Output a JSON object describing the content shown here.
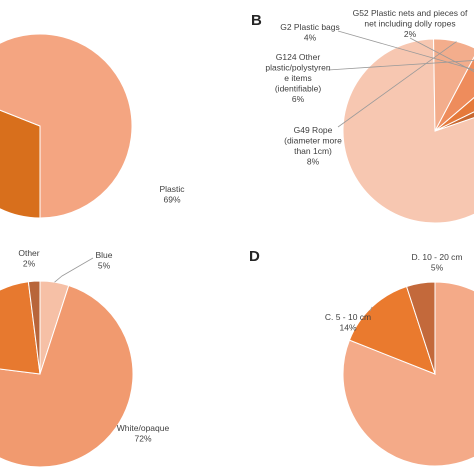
{
  "colors": {
    "panel_border": "#d0d0d0",
    "slice_stroke": "#ffffff",
    "leader": "#9a9a9a",
    "plastic": "#f4a581",
    "dark_orange": "#d86f1c",
    "rope": "#f3ad8c",
    "polystyrene": "#ee8c5c",
    "g2": "#e5793a",
    "g52": "#c86830",
    "blue": "#f6c0a6",
    "other": "#b8653a",
    "white_opaque": "#f19a6f",
    "mid_orange": "#e7792f",
    "size_large": "#f4aa88",
    "size_c": "#ea7a2e",
    "size_d": "#c3693b",
    "b_dominant": "#f7c7b1"
  },
  "chart_data": [
    {
      "panel": "A",
      "type": "pie",
      "letter": "",
      "slices": [
        {
          "label": "",
          "value": 31,
          "color": "dark_orange"
        },
        {
          "label": "Plastic",
          "value": 69,
          "display": "69%",
          "color": "plastic"
        }
      ]
    },
    {
      "panel": "B",
      "type": "pie",
      "letter": "B",
      "slices": [
        {
          "label": "",
          "value": 80,
          "color": "b_dominant"
        },
        {
          "label": "G49 Rope (diameter more than 1cm)",
          "lines": [
            "G49 Rope",
            "(diameter more",
            "than 1cm)"
          ],
          "value": 8,
          "display": "8%",
          "color": "rope"
        },
        {
          "label": "G124 Other plastic/polystyrene items (identifiable)",
          "lines": [
            "G124 Other",
            "plastic/polystyren",
            "e items",
            "(identifiable)"
          ],
          "value": 6,
          "display": "6%",
          "color": "polystyrene"
        },
        {
          "label": "G2 Plastic bags",
          "lines": [
            "G2 Plastic bags"
          ],
          "value": 4,
          "display": "4%",
          "color": "g2"
        },
        {
          "label": "G52 Plastic nets and pieces of net including dolly ropes",
          "lines": [
            "G52 Plastic nets and pieces of",
            "net including dolly ropes"
          ],
          "value": 2,
          "display": "2%",
          "color": "g52"
        }
      ]
    },
    {
      "panel": "C",
      "type": "pie",
      "letter": "",
      "slices": [
        {
          "label": "Blue",
          "value": 5,
          "display": "5%",
          "color": "blue"
        },
        {
          "label": "White/opaque",
          "value": 72,
          "display": "72%",
          "color": "white_opaque"
        },
        {
          "label": "",
          "value": 21,
          "color": "mid_orange"
        },
        {
          "label": "Other",
          "value": 2,
          "display": "2%",
          "color": "other"
        }
      ]
    },
    {
      "panel": "D",
      "type": "pie",
      "letter": "D",
      "slices": [
        {
          "label": "",
          "value": 81,
          "color": "size_large"
        },
        {
          "label": "C. 5 - 10 cm",
          "value": 14,
          "display": "14%",
          "color": "size_c"
        },
        {
          "label": "D. 10 - 20 cm",
          "value": 5,
          "display": "5%",
          "color": "size_d"
        }
      ]
    }
  ]
}
